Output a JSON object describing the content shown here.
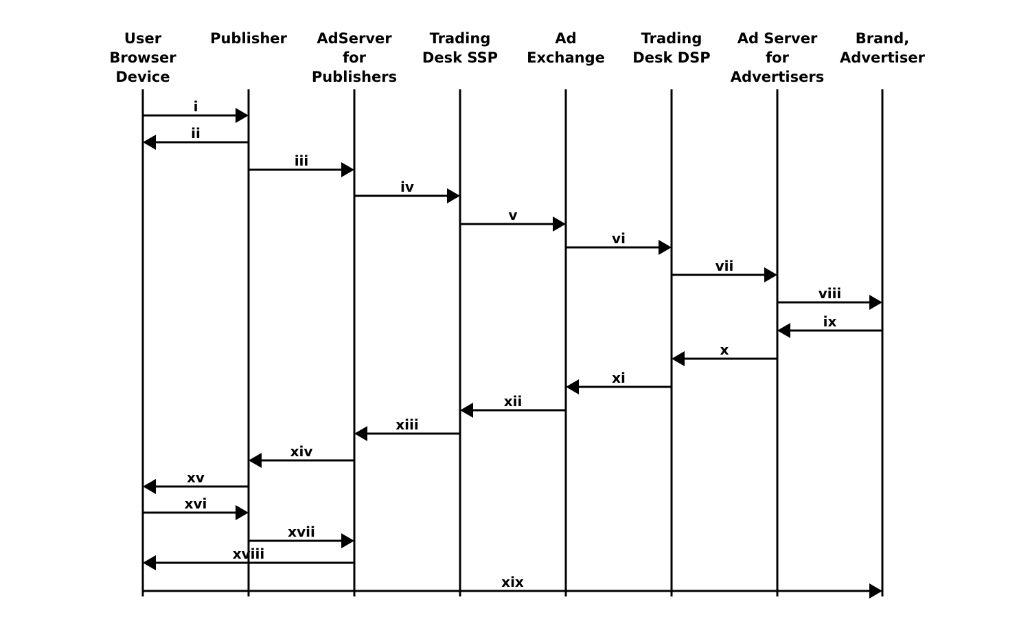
{
  "diagram": {
    "type": "sequence-diagram",
    "line_color": "#000000",
    "background_color": "#ffffff",
    "participants": [
      {
        "id": "user",
        "label_lines": [
          "User",
          "Browser",
          "Device"
        ]
      },
      {
        "id": "publisher",
        "label_lines": [
          "Publisher"
        ]
      },
      {
        "id": "adserver-publishers",
        "label_lines": [
          "AdServer",
          "for",
          "Publishers"
        ]
      },
      {
        "id": "trading-desk-ssp",
        "label_lines": [
          "Trading",
          "Desk SSP"
        ]
      },
      {
        "id": "ad-exchange",
        "label_lines": [
          "Ad",
          "Exchange"
        ]
      },
      {
        "id": "trading-desk-dsp",
        "label_lines": [
          "Trading",
          "Desk DSP"
        ]
      },
      {
        "id": "adserver-advertisers",
        "label_lines": [
          "Ad Server",
          "for",
          "Advertisers"
        ]
      },
      {
        "id": "brand-advertiser",
        "label_lines": [
          "Brand,",
          "Advertiser"
        ]
      }
    ],
    "messages": [
      {
        "label": "i",
        "from": "user",
        "to": "publisher"
      },
      {
        "label": "ii",
        "from": "publisher",
        "to": "user"
      },
      {
        "label": "iii",
        "from": "publisher",
        "to": "adserver-publishers"
      },
      {
        "label": "iv",
        "from": "adserver-publishers",
        "to": "trading-desk-ssp"
      },
      {
        "label": "v",
        "from": "trading-desk-ssp",
        "to": "ad-exchange"
      },
      {
        "label": "vi",
        "from": "ad-exchange",
        "to": "trading-desk-dsp"
      },
      {
        "label": "vii",
        "from": "trading-desk-dsp",
        "to": "adserver-advertisers"
      },
      {
        "label": "viii",
        "from": "adserver-advertisers",
        "to": "brand-advertiser"
      },
      {
        "label": "ix",
        "from": "brand-advertiser",
        "to": "adserver-advertisers"
      },
      {
        "label": "x",
        "from": "adserver-advertisers",
        "to": "trading-desk-dsp"
      },
      {
        "label": "xi",
        "from": "trading-desk-dsp",
        "to": "ad-exchange"
      },
      {
        "label": "xii",
        "from": "ad-exchange",
        "to": "trading-desk-ssp"
      },
      {
        "label": "xiii",
        "from": "trading-desk-ssp",
        "to": "adserver-publishers"
      },
      {
        "label": "xiv",
        "from": "adserver-publishers",
        "to": "publisher"
      },
      {
        "label": "xv",
        "from": "publisher",
        "to": "user"
      },
      {
        "label": "xvi",
        "from": "user",
        "to": "publisher"
      },
      {
        "label": "xvii",
        "from": "publisher",
        "to": "adserver-publishers"
      },
      {
        "label": "xviii",
        "from": "adserver-publishers",
        "to": "user"
      },
      {
        "label": "xix",
        "from": "user",
        "to": "brand-advertiser"
      }
    ]
  }
}
